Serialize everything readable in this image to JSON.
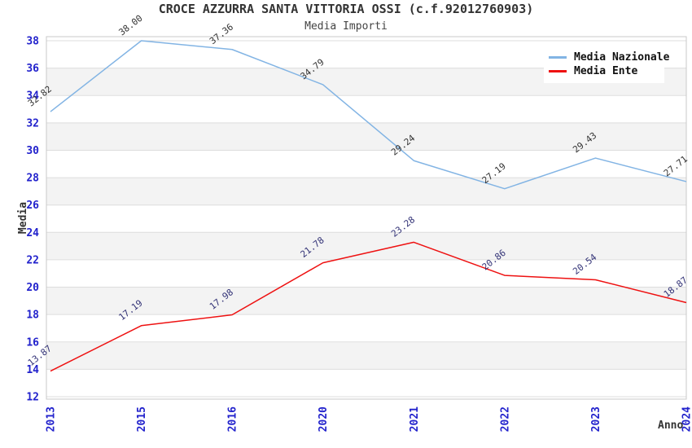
{
  "header": {
    "title": "CROCE AZZURRA SANTA VITTORIA OSSI (c.f.92012760903)",
    "subtitle": "Media Importi"
  },
  "chart_data": {
    "type": "line",
    "title": "CROCE AZZURRA SANTA VITTORIA OSSI (c.f.92012760903)",
    "subtitle": "Media Importi",
    "xlabel": "Anno",
    "ylabel": "Media",
    "categories": [
      "2013",
      "2015",
      "2016",
      "2020",
      "2021",
      "2022",
      "2023",
      "2024"
    ],
    "series": [
      {
        "name": "Media Nazionale",
        "color": "#82b4e4",
        "label_color": "#333333",
        "values": [
          32.82,
          38.0,
          37.36,
          34.79,
          29.24,
          27.19,
          29.43,
          27.71
        ]
      },
      {
        "name": "Media Ente",
        "color": "#ee1111",
        "label_color": "#333377",
        "values": [
          13.87,
          17.19,
          17.98,
          21.78,
          23.28,
          20.86,
          20.54,
          18.87
        ]
      }
    ],
    "ylim": [
      12,
      38
    ],
    "ytick_step": 2,
    "grid": true,
    "stripes": true,
    "legend_position": "top-right",
    "colors": {
      "tick_label": "#2222cc",
      "stripe": "#f3f3f3",
      "gridline": "#dddddd",
      "plot_border": "#c8c8c8",
      "axis_title": "#333333"
    }
  }
}
